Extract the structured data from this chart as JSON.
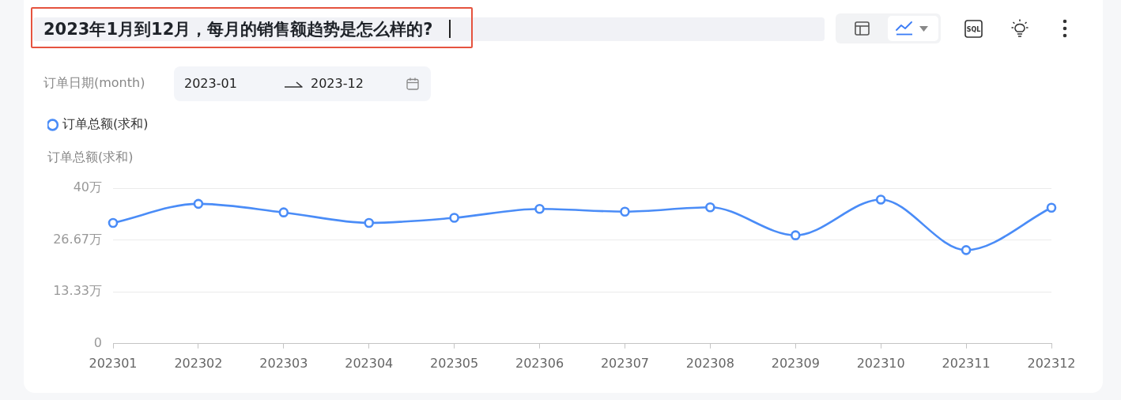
{
  "chart_data": {
    "type": "line",
    "title": "2023年1月到12月，每月的销售额趋势是怎么样的?",
    "ylabel": "订单总额(求和)",
    "annotations": [
      "订单日期(month)",
      "2023-01",
      "2023-12",
      "SQL"
    ],
    "categories": [
      "202301",
      "202302",
      "202303",
      "202304",
      "202305",
      "202306",
      "202307",
      "202308",
      "202309",
      "202310",
      "202311",
      "202312"
    ],
    "series": [
      {
        "name": "订单总额(求和)",
        "color": "#4a8cf7",
        "values": [
          31.1,
          36.0,
          33.8,
          31.1,
          32.4,
          34.7,
          34.0,
          35.1,
          27.9,
          37.1,
          24.1,
          35.0
        ]
      }
    ],
    "ylim": [
      0,
      40
    ],
    "yticks": [
      0,
      {
        "value": 13.33,
        "label": "13.33万"
      },
      {
        "value": 26.67,
        "label": "26.67万"
      },
      {
        "value": 40,
        "label": "40万"
      }
    ],
    "grid": "y",
    "legend": "top left",
    "marker": "circle",
    "line_style": "solid"
  }
}
